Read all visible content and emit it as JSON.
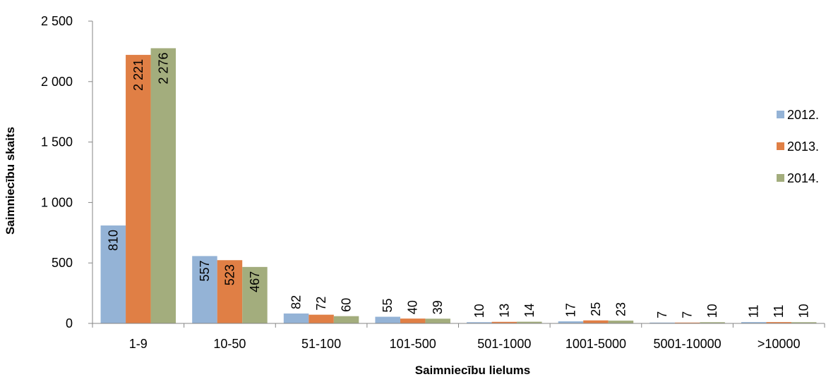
{
  "chart_data": {
    "type": "bar",
    "xlabel": "Saimniecību lielums",
    "ylabel": "Saimniecību skaits",
    "categories": [
      "1-9",
      "10-50",
      "51-100",
      "101-500",
      "501-1000",
      "1001-5000",
      "5001-10000",
      ">10000"
    ],
    "series": [
      {
        "name": "2012.",
        "color": "#94B3D6",
        "values": [
          810,
          557,
          82,
          55,
          10,
          17,
          7,
          11
        ],
        "labels": [
          "810",
          "557",
          "82",
          "55",
          "10",
          "17",
          "7",
          "11"
        ]
      },
      {
        "name": "2013.",
        "color": "#E07F45",
        "values": [
          2221,
          523,
          72,
          40,
          13,
          25,
          7,
          11
        ],
        "labels": [
          "2 221",
          "523",
          "72",
          "40",
          "13",
          "25",
          "7",
          "11"
        ]
      },
      {
        "name": "2014.",
        "color": "#A3AD7D",
        "values": [
          2276,
          467,
          60,
          39,
          14,
          23,
          10,
          10
        ],
        "labels": [
          "2 276",
          "467",
          "60",
          "39",
          "14",
          "23",
          "10",
          "10"
        ]
      }
    ],
    "ylim": [
      0,
      2500
    ],
    "yticks": [
      0,
      500,
      1000,
      1500,
      2000,
      2500
    ],
    "ytick_labels": [
      "0",
      "500",
      "1 000",
      "1 500",
      "2 000",
      "2 500"
    ],
    "grid": false,
    "legend_position": "right"
  }
}
